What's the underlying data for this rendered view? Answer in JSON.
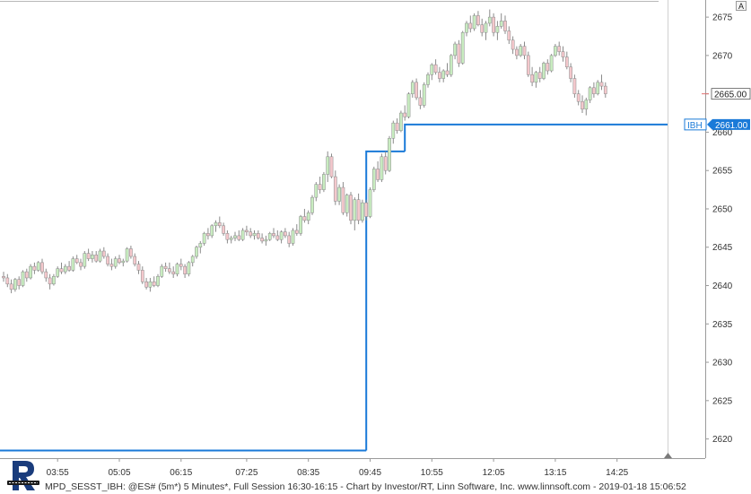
{
  "chart_data": {
    "type": "candlestick",
    "instrument": "@ES#",
    "interval": "5 Minutes",
    "y_ticks": [
      2620,
      2625,
      2630,
      2635,
      2640,
      2645,
      2650,
      2655,
      2660,
      2665,
      2670,
      2675
    ],
    "ylim": [
      2617.5,
      2677
    ],
    "x_ticks": [
      "03:55",
      "05:05",
      "06:15",
      "07:25",
      "08:35",
      "09:45",
      "10:55",
      "12:05",
      "13:15",
      "14:25"
    ],
    "levels": [
      {
        "label": "IBH",
        "value": 2661.0,
        "text": "2661.00"
      }
    ],
    "last_price": {
      "value": 2665.0,
      "text": "2665.00"
    },
    "ibh_steps": [
      {
        "from_index": 0,
        "to_index": 94,
        "value": 2618.5
      },
      {
        "from_index": 94,
        "to_index": 104,
        "value": 2657.5
      },
      {
        "from_index": 104,
        "to_index": 174,
        "value": 2661.0
      }
    ],
    "candles": [
      [
        2641.2,
        2641.8,
        2640.5,
        2641.0
      ],
      [
        2641.0,
        2641.5,
        2639.8,
        2640.2
      ],
      [
        2640.2,
        2640.8,
        2639.0,
        2639.5
      ],
      [
        2639.5,
        2641.0,
        2639.2,
        2640.8
      ],
      [
        2640.8,
        2641.2,
        2639.5,
        2640.0
      ],
      [
        2640.0,
        2642.0,
        2639.8,
        2641.8
      ],
      [
        2641.8,
        2642.2,
        2640.5,
        2641.0
      ],
      [
        2641.0,
        2642.8,
        2640.8,
        2642.5
      ],
      [
        2642.5,
        2643.0,
        2641.5,
        2642.0
      ],
      [
        2642.0,
        2643.2,
        2641.8,
        2643.0
      ],
      [
        2643.0,
        2643.5,
        2641.5,
        2641.8
      ],
      [
        2641.8,
        2642.2,
        2640.5,
        2641.0
      ],
      [
        2641.0,
        2641.5,
        2639.5,
        2640.2
      ],
      [
        2640.2,
        2641.5,
        2640.0,
        2641.2
      ],
      [
        2641.2,
        2642.5,
        2641.0,
        2642.2
      ],
      [
        2642.2,
        2643.0,
        2641.5,
        2641.8
      ],
      [
        2641.8,
        2642.8,
        2641.5,
        2642.5
      ],
      [
        2642.5,
        2643.2,
        2641.8,
        2642.0
      ],
      [
        2642.0,
        2643.8,
        2641.8,
        2643.5
      ],
      [
        2643.5,
        2644.0,
        2642.8,
        2643.0
      ],
      [
        2643.0,
        2643.5,
        2642.0,
        2642.5
      ],
      [
        2642.5,
        2644.5,
        2642.2,
        2644.2
      ],
      [
        2644.2,
        2644.8,
        2643.2,
        2643.5
      ],
      [
        2643.5,
        2644.5,
        2643.0,
        2644.0
      ],
      [
        2644.0,
        2644.5,
        2643.0,
        2643.2
      ],
      [
        2643.2,
        2644.8,
        2643.0,
        2644.5
      ],
      [
        2644.5,
        2645.0,
        2643.5,
        2643.8
      ],
      [
        2643.8,
        2644.2,
        2642.5,
        2642.8
      ],
      [
        2642.8,
        2643.5,
        2642.0,
        2642.5
      ],
      [
        2642.5,
        2643.8,
        2642.2,
        2643.5
      ],
      [
        2643.5,
        2644.0,
        2642.8,
        2643.0
      ],
      [
        2643.0,
        2643.5,
        2642.5,
        2643.2
      ],
      [
        2643.2,
        2645.0,
        2643.0,
        2644.8
      ],
      [
        2644.8,
        2645.2,
        2643.5,
        2643.8
      ],
      [
        2643.8,
        2644.2,
        2642.5,
        2642.8
      ],
      [
        2642.8,
        2643.2,
        2641.5,
        2642.0
      ],
      [
        2642.0,
        2642.5,
        2640.2,
        2640.5
      ],
      [
        2640.5,
        2641.0,
        2639.5,
        2639.8
      ],
      [
        2639.8,
        2641.0,
        2639.2,
        2640.5
      ],
      [
        2640.5,
        2641.2,
        2639.8,
        2640.0
      ],
      [
        2640.0,
        2641.5,
        2639.8,
        2641.2
      ],
      [
        2641.2,
        2642.8,
        2641.0,
        2642.5
      ],
      [
        2642.5,
        2643.0,
        2641.8,
        2642.2
      ],
      [
        2642.2,
        2643.0,
        2641.5,
        2641.8
      ],
      [
        2641.8,
        2642.5,
        2641.0,
        2641.5
      ],
      [
        2641.5,
        2643.0,
        2641.2,
        2642.8
      ],
      [
        2642.8,
        2643.5,
        2642.0,
        2642.5
      ],
      [
        2642.5,
        2642.8,
        2641.0,
        2641.5
      ],
      [
        2641.5,
        2643.2,
        2641.2,
        2643.0
      ],
      [
        2643.0,
        2644.0,
        2642.5,
        2643.8
      ],
      [
        2643.8,
        2645.2,
        2643.5,
        2645.0
      ],
      [
        2645.0,
        2645.8,
        2644.2,
        2645.5
      ],
      [
        2645.5,
        2647.0,
        2645.2,
        2646.8
      ],
      [
        2646.8,
        2647.5,
        2646.0,
        2646.5
      ],
      [
        2646.5,
        2648.0,
        2646.2,
        2647.8
      ],
      [
        2647.8,
        2648.5,
        2647.0,
        2648.2
      ],
      [
        2648.2,
        2649.0,
        2647.5,
        2647.8
      ],
      [
        2647.8,
        2648.2,
        2646.5,
        2646.8
      ],
      [
        2646.8,
        2647.2,
        2645.5,
        2646.0
      ],
      [
        2646.0,
        2646.5,
        2645.5,
        2646.2
      ],
      [
        2646.2,
        2647.0,
        2645.8,
        2646.5
      ],
      [
        2646.5,
        2647.2,
        2645.8,
        2646.0
      ],
      [
        2646.0,
        2647.5,
        2645.8,
        2647.2
      ],
      [
        2647.2,
        2647.8,
        2646.5,
        2647.0
      ],
      [
        2647.0,
        2647.5,
        2646.2,
        2646.5
      ],
      [
        2646.5,
        2647.2,
        2646.0,
        2646.8
      ],
      [
        2646.8,
        2647.2,
        2646.0,
        2646.2
      ],
      [
        2646.2,
        2646.8,
        2645.5,
        2645.8
      ],
      [
        2645.8,
        2646.5,
        2645.2,
        2646.0
      ],
      [
        2646.0,
        2647.0,
        2645.8,
        2646.8
      ],
      [
        2646.8,
        2647.5,
        2646.2,
        2646.5
      ],
      [
        2646.5,
        2647.2,
        2645.8,
        2646.0
      ],
      [
        2646.0,
        2647.2,
        2645.5,
        2647.0
      ],
      [
        2647.0,
        2647.5,
        2646.2,
        2646.5
      ],
      [
        2646.5,
        2647.0,
        2645.0,
        2645.5
      ],
      [
        2645.5,
        2647.5,
        2645.2,
        2647.2
      ],
      [
        2647.2,
        2648.0,
        2646.5,
        2646.8
      ],
      [
        2646.8,
        2649.2,
        2646.5,
        2649.0
      ],
      [
        2649.0,
        2650.0,
        2648.2,
        2648.5
      ],
      [
        2648.5,
        2649.8,
        2648.0,
        2649.5
      ],
      [
        2649.5,
        2651.8,
        2649.2,
        2651.5
      ],
      [
        2651.5,
        2653.5,
        2651.0,
        2653.2
      ],
      [
        2653.2,
        2654.2,
        2652.0,
        2652.5
      ],
      [
        2652.5,
        2654.8,
        2652.2,
        2654.5
      ],
      [
        2654.5,
        2657.5,
        2653.5,
        2656.8
      ],
      [
        2656.8,
        2657.2,
        2654.0,
        2654.2
      ],
      [
        2654.2,
        2655.0,
        2650.5,
        2651.0
      ],
      [
        2651.0,
        2653.2,
        2650.5,
        2652.8
      ],
      [
        2652.8,
        2653.5,
        2649.2,
        2649.5
      ],
      [
        2649.5,
        2652.0,
        2649.0,
        2651.8
      ],
      [
        2651.8,
        2652.2,
        2648.0,
        2648.5
      ],
      [
        2648.5,
        2651.5,
        2647.2,
        2651.2
      ],
      [
        2651.2,
        2652.0,
        2648.0,
        2648.5
      ],
      [
        2648.5,
        2651.2,
        2648.2,
        2650.8
      ],
      [
        2650.8,
        2651.2,
        2648.5,
        2649.0
      ],
      [
        2649.0,
        2652.8,
        2648.8,
        2652.5
      ],
      [
        2652.5,
        2655.5,
        2652.2,
        2655.2
      ],
      [
        2655.2,
        2656.2,
        2653.5,
        2653.8
      ],
      [
        2653.8,
        2657.2,
        2653.5,
        2656.8
      ],
      [
        2656.8,
        2657.5,
        2654.5,
        2655.0
      ],
      [
        2655.0,
        2659.5,
        2654.8,
        2659.2
      ],
      [
        2659.2,
        2661.5,
        2658.5,
        2661.2
      ],
      [
        2661.2,
        2661.8,
        2659.8,
        2660.2
      ],
      [
        2660.2,
        2662.8,
        2660.0,
        2662.5
      ],
      [
        2662.5,
        2663.5,
        2661.5,
        2662.0
      ],
      [
        2662.0,
        2665.2,
        2661.8,
        2665.0
      ],
      [
        2665.0,
        2666.8,
        2664.5,
        2666.5
      ],
      [
        2666.5,
        2667.0,
        2664.2,
        2664.5
      ],
      [
        2664.5,
        2665.5,
        2663.0,
        2663.5
      ],
      [
        2663.5,
        2666.5,
        2663.2,
        2666.2
      ],
      [
        2666.2,
        2667.8,
        2665.8,
        2667.5
      ],
      [
        2667.5,
        2669.0,
        2666.8,
        2668.8
      ],
      [
        2668.8,
        2669.5,
        2667.5,
        2667.8
      ],
      [
        2667.8,
        2668.5,
        2666.5,
        2667.0
      ],
      [
        2667.0,
        2668.2,
        2666.5,
        2668.0
      ],
      [
        2668.0,
        2669.0,
        2667.2,
        2667.5
      ],
      [
        2667.5,
        2670.2,
        2667.2,
        2670.0
      ],
      [
        2670.0,
        2671.8,
        2669.5,
        2671.5
      ],
      [
        2671.5,
        2672.0,
        2668.5,
        2669.0
      ],
      [
        2669.0,
        2673.2,
        2668.8,
        2673.0
      ],
      [
        2673.0,
        2674.5,
        2672.5,
        2674.2
      ],
      [
        2674.2,
        2675.2,
        2673.0,
        2673.5
      ],
      [
        2673.5,
        2675.5,
        2673.2,
        2675.2
      ],
      [
        2675.2,
        2675.8,
        2673.8,
        2674.0
      ],
      [
        2674.0,
        2674.8,
        2672.5,
        2673.0
      ],
      [
        2673.0,
        2674.5,
        2672.0,
        2674.2
      ],
      [
        2674.2,
        2676.0,
        2673.8,
        2675.0
      ],
      [
        2675.0,
        2675.5,
        2672.5,
        2673.0
      ],
      [
        2673.0,
        2674.5,
        2672.0,
        2673.8
      ],
      [
        2673.8,
        2675.5,
        2673.5,
        2674.5
      ],
      [
        2674.5,
        2675.2,
        2672.8,
        2673.2
      ],
      [
        2673.2,
        2673.8,
        2671.5,
        2672.0
      ],
      [
        2672.0,
        2672.5,
        2670.2,
        2670.8
      ],
      [
        2670.8,
        2671.2,
        2669.5,
        2670.0
      ],
      [
        2670.0,
        2671.5,
        2669.8,
        2671.2
      ],
      [
        2671.2,
        2671.8,
        2669.5,
        2670.0
      ],
      [
        2670.0,
        2670.5,
        2667.2,
        2667.5
      ],
      [
        2667.5,
        2668.5,
        2666.0,
        2666.5
      ],
      [
        2666.5,
        2668.0,
        2665.8,
        2667.8
      ],
      [
        2667.8,
        2668.5,
        2666.5,
        2667.0
      ],
      [
        2667.0,
        2669.2,
        2666.8,
        2669.0
      ],
      [
        2669.0,
        2669.5,
        2667.5,
        2668.0
      ],
      [
        2668.0,
        2670.2,
        2667.8,
        2670.0
      ],
      [
        2670.0,
        2671.5,
        2669.8,
        2671.2
      ],
      [
        2671.2,
        2671.8,
        2670.0,
        2670.5
      ],
      [
        2670.5,
        2671.2,
        2669.2,
        2669.8
      ],
      [
        2669.8,
        2670.5,
        2668.2,
        2668.5
      ],
      [
        2668.5,
        2669.0,
        2666.5,
        2667.0
      ],
      [
        2667.0,
        2667.5,
        2664.5,
        2665.0
      ],
      [
        2665.0,
        2665.5,
        2663.5,
        2664.0
      ],
      [
        2664.0,
        2664.8,
        2662.5,
        2663.0
      ],
      [
        2663.0,
        2664.5,
        2662.2,
        2664.2
      ],
      [
        2664.2,
        2666.0,
        2663.8,
        2665.8
      ],
      [
        2665.8,
        2666.5,
        2664.5,
        2665.0
      ],
      [
        2665.0,
        2666.8,
        2664.8,
        2666.5
      ],
      [
        2666.5,
        2667.5,
        2665.5,
        2666.0
      ],
      [
        2666.0,
        2666.5,
        2664.5,
        2665.0
      ]
    ],
    "footer_text": "MPD_SESST_IBH: @ES# (5m*) 5 Minutes*, Full Session 16:30-16:15 - Chart by Investor/RT, Linn Software, Inc. www.linnsoft.com - 2019-01-18 15:06:52",
    "auto_scale_label": "A",
    "colors": {
      "up_body": "#c8ecc0",
      "down_body": "#f4c8cc",
      "wick": "#8a8a8a",
      "ibh_line": "#1a7ad8",
      "price_tag_bg": "#ffffff",
      "ibh_tag_bg": "#1a7ad8"
    }
  }
}
